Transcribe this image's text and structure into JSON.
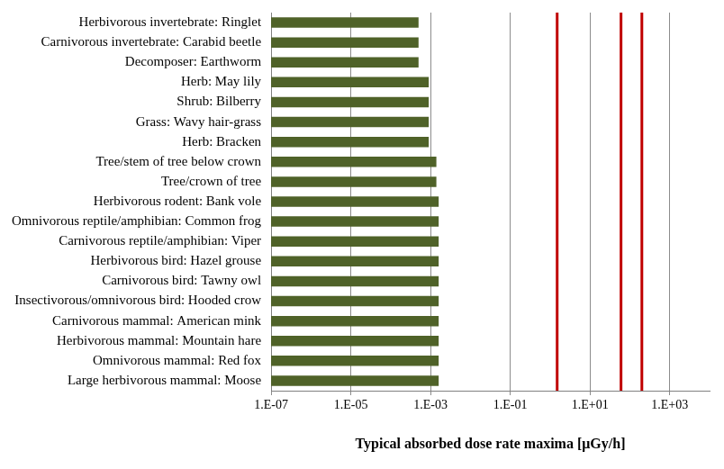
{
  "chart_data": {
    "type": "bar",
    "orientation": "horizontal",
    "log": "x",
    "grid": true,
    "xlabel": "Typical absorbed dose rate maxima [μGy/h]",
    "categories": [
      "Herbivorous invertebrate: Ringlet",
      "Carnivorous invertebrate: Carabid beetle",
      "Decomposer: Earthworm",
      "Herb: May lily",
      "Shrub: Bilberry",
      "Grass: Wavy hair-grass",
      "Herb: Bracken",
      "Tree/stem of tree below crown",
      "Tree/crown of tree",
      "Herbivorous rodent: Bank vole",
      "Omnivorous reptile/amphibian: Common frog",
      "Carnivorous reptile/amphibian: Viper",
      "Herbivorous bird: Hazel grouse",
      "Carnivorous bird: Tawny owl",
      "Insectivorous/omnivorous bird: Hooded crow",
      "Carnivorous mammal: American mink",
      "Herbivorous mammal: Mountain hare",
      "Omnivorous mammal: Red fox",
      "Large herbivorous mammal: Moose"
    ],
    "values": [
      0.0005,
      0.0005,
      0.0005,
      0.0009,
      0.0009,
      0.0009,
      0.0009,
      0.0014,
      0.0014,
      0.0016,
      0.0016,
      0.0016,
      0.0016,
      0.0016,
      0.0016,
      0.0016,
      0.0016,
      0.0016,
      0.0016
    ],
    "color": "#4f6228",
    "xlim": [
      1e-07,
      10000
    ],
    "xticks": [
      {
        "value": 1e-07,
        "label": "1.E-07"
      },
      {
        "value": 1e-05,
        "label": "1.E-05"
      },
      {
        "value": 0.001,
        "label": "1.E-03"
      },
      {
        "value": 0.1,
        "label": "1.E-01"
      },
      {
        "value": 10,
        "label": "1.E+01"
      },
      {
        "value": 1000,
        "label": "1.E+03"
      }
    ],
    "reference_lines": {
      "values": [
        1.5,
        60,
        200
      ],
      "color": "#c00000"
    }
  }
}
